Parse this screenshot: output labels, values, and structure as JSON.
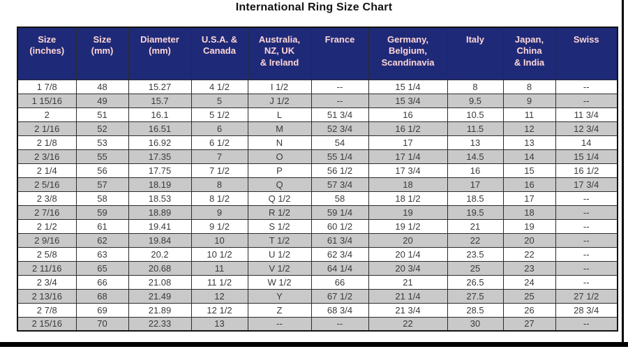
{
  "title": "International Ring Size Chart",
  "chart_data": {
    "type": "table",
    "title": "International Ring Size Chart",
    "columns": [
      "Size\n(inches)",
      "Size\n(mm)",
      "Diameter\n(mm)",
      "U.S.A. &\nCanada",
      "Australia,\nNZ, UK\n& Ireland",
      "France",
      "Germany,\nBelgium,\nScandinavia",
      "Italy",
      "Japan,\nChina\n& India",
      "Swiss"
    ],
    "rows": [
      [
        "1 7/8",
        "48",
        "15.27",
        "4 1/2",
        "I 1/2",
        "--",
        "15 1/4",
        "8",
        "8",
        "--"
      ],
      [
        "1 15/16",
        "49",
        "15.7",
        "5",
        "J 1/2",
        "--",
        "15 3/4",
        "9.5",
        "9",
        "--"
      ],
      [
        "2",
        "51",
        "16.1",
        "5 1/2",
        "L",
        "51 3/4",
        "16",
        "10.5",
        "11",
        "11 3/4"
      ],
      [
        "2 1/16",
        "52",
        "16.51",
        "6",
        "M",
        "52 3/4",
        "16 1/2",
        "11.5",
        "12",
        "12 3/4"
      ],
      [
        "2 1/8",
        "53",
        "16.92",
        "6 1/2",
        "N",
        "54",
        "17",
        "13",
        "13",
        "14"
      ],
      [
        "2 3/16",
        "55",
        "17.35",
        "7",
        "O",
        "55 1/4",
        "17 1/4",
        "14.5",
        "14",
        "15 1/4"
      ],
      [
        "2 1/4",
        "56",
        "17.75",
        "7 1/2",
        "P",
        "56 1/2",
        "17 3/4",
        "16",
        "15",
        "16 1/2"
      ],
      [
        "2 5/16",
        "57",
        "18.19",
        "8",
        "Q",
        "57 3/4",
        "18",
        "17",
        "16",
        "17 3/4"
      ],
      [
        "2 3/8",
        "58",
        "18.53",
        "8 1/2",
        "Q 1/2",
        "58",
        "18 1/2",
        "18.5",
        "17",
        "--"
      ],
      [
        "2 7/16",
        "59",
        "18.89",
        "9",
        "R 1/2",
        "59 1/4",
        "19",
        "19.5",
        "18",
        "--"
      ],
      [
        "2 1/2",
        "61",
        "19.41",
        "9 1/2",
        "S 1/2",
        "60 1/2",
        "19 1/2",
        "21",
        "19",
        "--"
      ],
      [
        "2 9/16",
        "62",
        "19.84",
        "10",
        "T 1/2",
        "61 3/4",
        "20",
        "22",
        "20",
        "--"
      ],
      [
        "2 5/8",
        "63",
        "20.2",
        "10 1/2",
        "U 1/2",
        "62 3/4",
        "20 1/4",
        "23.5",
        "22",
        "--"
      ],
      [
        "2 11/16",
        "65",
        "20.68",
        "11",
        "V 1/2",
        "64 1/4",
        "20 3/4",
        "25",
        "23",
        "--"
      ],
      [
        "2 3/4",
        "66",
        "21.08",
        "11 1/2",
        "W 1/2",
        "66",
        "21",
        "26.5",
        "24",
        "--"
      ],
      [
        "2 13/16",
        "68",
        "21.49",
        "12",
        "Y",
        "67 1/2",
        "21 1/4",
        "27.5",
        "25",
        "27 1/2"
      ],
      [
        "2 7/8",
        "69",
        "21.89",
        "12 1/2",
        "Z",
        "68 3/4",
        "21 3/4",
        "28.5",
        "26",
        "28 3/4"
      ],
      [
        "2 15/16",
        "70",
        "22.33",
        "13",
        "--",
        "--",
        "22",
        "30",
        "27",
        "--"
      ]
    ]
  },
  "colors": {
    "header_bg": "#1e2a78",
    "header_text": "#ffd6d6",
    "row_bg": "#ffffff",
    "row_alt_bg": "#c9c9c9",
    "body_text": "#3a3a3a",
    "frame": "#000000"
  }
}
